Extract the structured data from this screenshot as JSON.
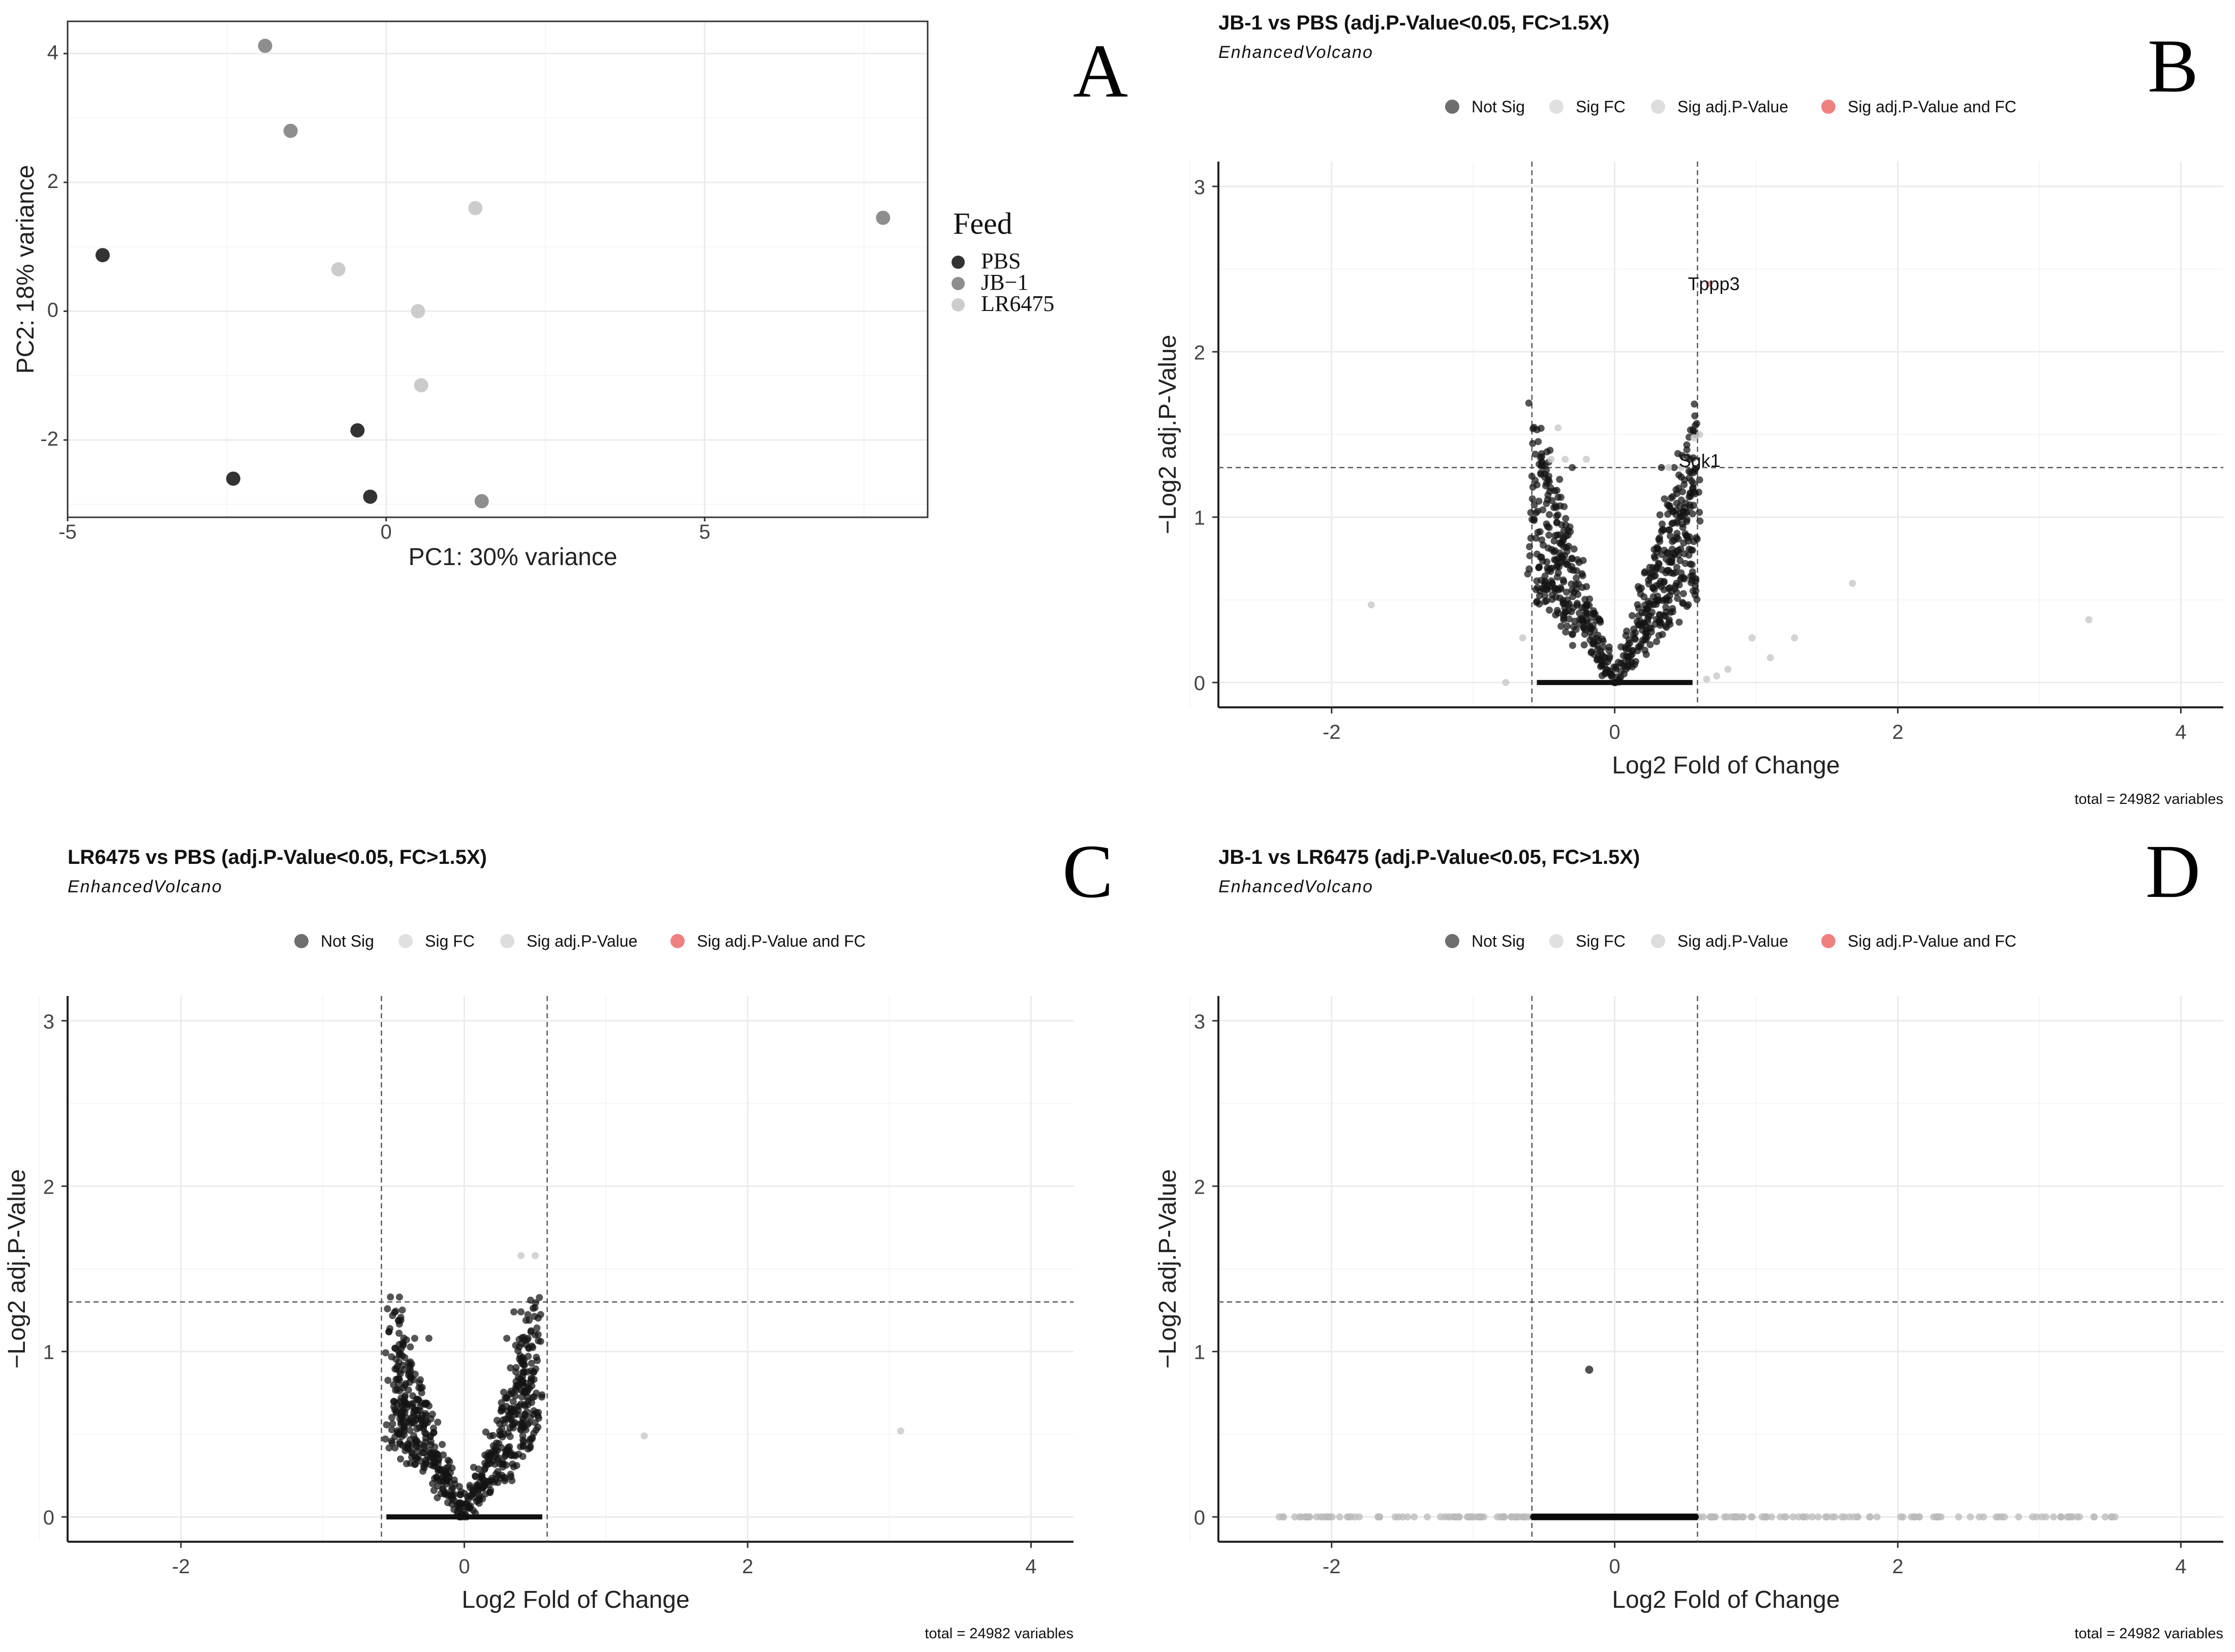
{
  "chart_data": [
    {
      "panel": "A",
      "type": "scatter",
      "title": "",
      "xlabel": "PC1: 30% variance",
      "ylabel": "PC2: 18% variance",
      "xlim": [
        -5,
        8.5
      ],
      "ylim": [
        -3.2,
        4.5
      ],
      "xticks": [
        -5,
        0,
        5
      ],
      "xtick_labels": [
        "-5",
        "0",
        "5"
      ],
      "yticks": [
        -2,
        0,
        2,
        4
      ],
      "ytick_labels": [
        "-2",
        "0",
        "2",
        "4"
      ],
      "legend_title": "Feed",
      "legend_position": "right",
      "series": [
        {
          "name": "PBS",
          "color": "#333333",
          "points": [
            [
              -4.45,
              0.87
            ],
            [
              -2.4,
              -2.6
            ],
            [
              -0.45,
              -1.85
            ],
            [
              -0.25,
              -2.88
            ]
          ]
        },
        {
          "name": "JB−1",
          "color": "#8e8e8e",
          "points": [
            [
              -1.9,
              4.12
            ],
            [
              -1.5,
              2.8
            ],
            [
              7.8,
              1.45
            ],
            [
              1.5,
              -2.95
            ]
          ]
        },
        {
          "name": "LR6475",
          "color": "#cccccc",
          "points": [
            [
              1.4,
              1.6
            ],
            [
              -0.75,
              0.65
            ],
            [
              0.5,
              0.0
            ],
            [
              0.55,
              -1.15
            ]
          ]
        }
      ]
    },
    {
      "panel": "B",
      "type": "scatter",
      "title": "JB-1 vs PBS (adj.P-Value<0.05, FC>1.5X)",
      "subtitle": "EnhancedVolcano",
      "xlabel": "Log2 Fold of Change",
      "ylabel": "−Log2 adj.P-Value",
      "caption": "total = 24982 variables",
      "xlim": [
        -2.8,
        4.3
      ],
      "ylim": [
        -0.15,
        3.15
      ],
      "xticks": [
        -2,
        0,
        2,
        4
      ],
      "xtick_labels": [
        "-2",
        "0",
        "2",
        "4"
      ],
      "yticks": [
        0,
        1,
        2,
        3
      ],
      "ytick_labels": [
        "0",
        "1",
        "2",
        "3"
      ],
      "fc_cutoff": 0.585,
      "p_cutoff": 1.3,
      "seed": 11,
      "labels": [
        {
          "text": "Tppp3",
          "x": 0.7,
          "y": 2.41
        },
        {
          "text": "Sgk1",
          "x": 0.6,
          "y": 1.34
        }
      ],
      "outliers": [
        [
          -1.72,
          0.47
        ],
        [
          -0.77,
          0.0
        ],
        [
          -0.65,
          0.27
        ],
        [
          0.97,
          0.27
        ],
        [
          1.1,
          0.15
        ],
        [
          1.27,
          0.27
        ],
        [
          1.68,
          0.6
        ],
        [
          3.35,
          0.38
        ],
        [
          0.65,
          0.02
        ],
        [
          0.72,
          0.04
        ],
        [
          0.8,
          0.08
        ],
        [
          0.6,
          1.5
        ]
      ],
      "sigp": [
        [
          -0.4,
          1.54
        ],
        [
          -0.45,
          1.35
        ],
        [
          -0.35,
          1.35
        ],
        [
          -0.2,
          1.35
        ],
        [
          0.38,
          1.3
        ],
        [
          0.47,
          1.3
        ],
        [
          0.56,
          1.48
        ]
      ],
      "highlight": [
        [
          0.67,
          2.41
        ]
      ],
      "cloud": {
        "n": 650,
        "xmax": 0.58,
        "k": 2.6,
        "extra": [
          [
            -0.3,
            1.3
          ],
          [
            -0.38,
            1.12
          ],
          [
            -0.4,
            1.12
          ],
          [
            0.33,
            1.3
          ],
          [
            0.42,
            1.3
          ],
          [
            0.55,
            1.02
          ],
          [
            0.55,
            0.8
          ],
          [
            0.45,
            0.8
          ],
          [
            0.35,
            0.8
          ]
        ]
      },
      "legend_items": [
        {
          "label": "Not Sig",
          "color": "#6e6e6e"
        },
        {
          "label": "Sig FC",
          "color": "#e0e0e0"
        },
        {
          "label": "Sig adj.P-Value",
          "color": "#dddddd"
        },
        {
          "label": "Sig adj.P-Value and FC",
          "color": "#f08080"
        }
      ]
    },
    {
      "panel": "C",
      "type": "scatter",
      "title": "LR6475 vs PBS (adj.P-Value<0.05, FC>1.5X)",
      "subtitle": "EnhancedVolcano",
      "xlabel": "Log2 Fold of Change",
      "ylabel": "−Log2 adj.P-Value",
      "caption": "total = 24982 variables",
      "xlim": [
        -2.8,
        4.3
      ],
      "ylim": [
        -0.15,
        3.15
      ],
      "xticks": [
        -2,
        0,
        2,
        4
      ],
      "xtick_labels": [
        "-2",
        "0",
        "2",
        "4"
      ],
      "yticks": [
        0,
        1,
        2,
        3
      ],
      "ytick_labels": [
        "0",
        "1",
        "2",
        "3"
      ],
      "fc_cutoff": 0.585,
      "p_cutoff": 1.3,
      "seed": 23,
      "labels": [],
      "outliers": [
        [
          1.27,
          0.49
        ],
        [
          3.08,
          0.52
        ]
      ],
      "sigp": [
        [
          0.4,
          1.58
        ],
        [
          0.5,
          1.58
        ]
      ],
      "highlight": [],
      "cloud": {
        "n": 650,
        "xmax": 0.52,
        "k": 2.4,
        "extra": [
          [
            -0.35,
            1.08
          ],
          [
            -0.25,
            1.08
          ],
          [
            0.35,
            1.24
          ],
          [
            0.4,
            1.24
          ],
          [
            0.3,
            1.08
          ],
          [
            0.45,
            1.08
          ]
        ]
      },
      "legend_items": [
        {
          "label": "Not Sig",
          "color": "#6e6e6e"
        },
        {
          "label": "Sig FC",
          "color": "#e0e0e0"
        },
        {
          "label": "Sig adj.P-Value",
          "color": "#dddddd"
        },
        {
          "label": "Sig adj.P-Value and FC",
          "color": "#f08080"
        }
      ]
    },
    {
      "panel": "D",
      "type": "scatter",
      "title": "JB-1 vs LR6475 (adj.P-Value<0.05, FC>1.5X)",
      "subtitle": "EnhancedVolcano",
      "xlabel": "Log2 Fold of Change",
      "ylabel": "−Log2 adj.P-Value",
      "caption": "total = 24982 variables",
      "xlim": [
        -2.8,
        4.3
      ],
      "ylim": [
        -0.15,
        3.15
      ],
      "xticks": [
        -2,
        0,
        2,
        4
      ],
      "xtick_labels": [
        "-2",
        "0",
        "2",
        "4"
      ],
      "yticks": [
        0,
        1,
        2,
        3
      ],
      "ytick_labels": [
        "0",
        "1",
        "2",
        "3"
      ],
      "fc_cutoff": 0.585,
      "p_cutoff": 1.3,
      "seed": 37,
      "labels": [],
      "outliers": [],
      "sigp": [],
      "highlight": [],
      "flat": {
        "ndark": 240,
        "ngray": 170,
        "grayrange": [
          -2.45,
          3.55
        ]
      },
      "singles": [
        [
          -0.18,
          0.89
        ]
      ],
      "legend_items": [
        {
          "label": "Not Sig",
          "color": "#6e6e6e"
        },
        {
          "label": "Sig FC",
          "color": "#e0e0e0"
        },
        {
          "label": "Sig adj.P-Value",
          "color": "#dddddd"
        },
        {
          "label": "Sig adj.P-Value and FC",
          "color": "#f08080"
        }
      ]
    }
  ],
  "panel_labels": [
    "A",
    "B",
    "C",
    "D"
  ],
  "pca_legend": {
    "title": "Feed",
    "items": [
      "PBS",
      "JB−1",
      "LR6475"
    ]
  }
}
